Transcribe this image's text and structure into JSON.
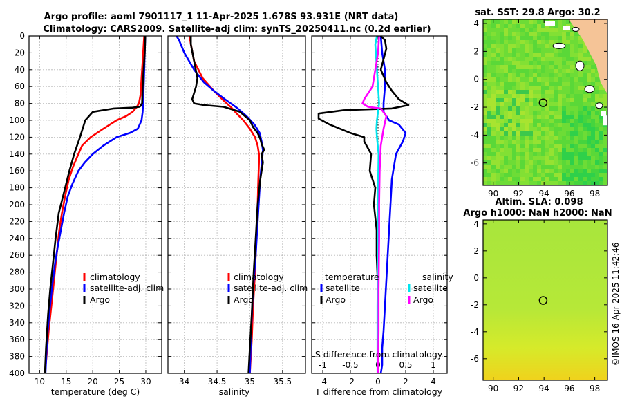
{
  "header": {
    "title1": "Argo profile: aoml 7901117_1 11-Apr-2025 1.678S 93.931E (NRT data)",
    "title2": "Climatology: CARS2009. Satellite-adj clim: synTS_20250411.nc (0.2d earlier)"
  },
  "colors": {
    "clim": "#ff0000",
    "sat": "#0000ff",
    "argo": "#000000",
    "sat_sal": "#00e5ee",
    "argo_sal": "#ff00ff",
    "land": "#f5c497"
  },
  "depth_axis": {
    "ticks": [
      "0",
      "20",
      "40",
      "60",
      "80",
      "100",
      "120",
      "140",
      "160",
      "180",
      "200",
      "220",
      "240",
      "260",
      "280",
      "300",
      "320",
      "340",
      "360",
      "380",
      "400"
    ],
    "ylim": [
      0,
      400
    ]
  },
  "chart_data": [
    {
      "type": "line",
      "name": "temperature",
      "xlabel": "temperature (deg C)",
      "xlim": [
        8,
        33
      ],
      "xticks": [
        "10",
        "15",
        "20",
        "25",
        "30"
      ],
      "xtick_values": [
        10,
        15,
        20,
        25,
        30
      ],
      "ylim": [
        0,
        400
      ],
      "legend": [
        "climatology",
        "satellite-adj. clim",
        "Argo"
      ],
      "series": [
        {
          "name": "climatology",
          "color": "#ff0000",
          "x": [
            29.7,
            29.6,
            29.4,
            29.2,
            29.0,
            28.7,
            28.2,
            27.5,
            26.3,
            24.5,
            22.0,
            19.6,
            18.0,
            17.3,
            16.3,
            15.5,
            14.8,
            14.2,
            13.7,
            13.2,
            12.7,
            12.2,
            11.7,
            11.3,
            11.0
          ],
          "y": [
            0,
            10,
            30,
            50,
            70,
            80,
            85,
            90,
            95,
            100,
            110,
            120,
            130,
            140,
            155,
            170,
            190,
            210,
            230,
            260,
            290,
            320,
            350,
            380,
            400
          ]
        },
        {
          "name": "satellite-adj. clim",
          "color": "#0000ff",
          "x": [
            29.9,
            29.8,
            29.7,
            29.6,
            29.5,
            29.4,
            29.2,
            28.5,
            27.0,
            24.5,
            22.0,
            20.0,
            18.5,
            17.3,
            16.2,
            15.3,
            14.6,
            14.0,
            13.4,
            12.9,
            12.3,
            11.8,
            11.4,
            11.1
          ],
          "y": [
            0,
            20,
            40,
            60,
            80,
            90,
            100,
            110,
            115,
            120,
            130,
            140,
            150,
            160,
            175,
            190,
            210,
            230,
            250,
            270,
            300,
            330,
            360,
            400
          ]
        },
        {
          "name": "Argo",
          "color": "#000000",
          "x": [
            29.9,
            29.8,
            29.6,
            29.4,
            29.3,
            29.0,
            28.8,
            27.5,
            24.0,
            20.0,
            18.6,
            17.6,
            16.5,
            15.6,
            15.0,
            14.4,
            13.6,
            13.0,
            12.5,
            12.0,
            11.6,
            11.2,
            11.0
          ],
          "y": [
            0,
            20,
            40,
            60,
            80,
            83,
            84,
            85,
            86,
            90,
            100,
            120,
            140,
            160,
            175,
            190,
            210,
            240,
            270,
            300,
            330,
            370,
            400
          ]
        }
      ]
    },
    {
      "type": "line",
      "name": "salinity",
      "xlabel": "salinity",
      "xlim": [
        33.75,
        35.85
      ],
      "xticks": [
        "34",
        "34.5",
        "35",
        "35.5"
      ],
      "xtick_values": [
        34,
        34.5,
        35,
        35.5
      ],
      "ylim": [
        0,
        400
      ],
      "legend": [
        "climatology",
        "satellite-adj. clim",
        "Argo"
      ],
      "series": [
        {
          "name": "climatology",
          "color": "#ff0000",
          "x": [
            34.08,
            34.1,
            34.15,
            34.28,
            34.45,
            34.62,
            34.72,
            34.8,
            34.9,
            35.0,
            35.08,
            35.12,
            35.14,
            35.14,
            35.13,
            35.12,
            35.1,
            35.08,
            35.05,
            35.03,
            35.0
          ],
          "y": [
            0,
            10,
            30,
            50,
            65,
            78,
            85,
            92,
            100,
            110,
            120,
            130,
            140,
            150,
            170,
            200,
            240,
            280,
            320,
            360,
            400
          ]
        },
        {
          "name": "satellite-adj. clim",
          "color": "#0000ff",
          "x": [
            33.88,
            33.92,
            34.0,
            34.15,
            34.3,
            34.45,
            34.62,
            34.8,
            34.95,
            35.07,
            35.15,
            35.18,
            35.2,
            35.19,
            35.17,
            35.15,
            35.12,
            35.09,
            35.05,
            35.02,
            35.0
          ],
          "y": [
            0,
            5,
            20,
            40,
            55,
            65,
            75,
            85,
            95,
            105,
            115,
            125,
            135,
            145,
            160,
            180,
            220,
            260,
            300,
            350,
            400
          ]
        },
        {
          "name": "Argo",
          "color": "#000000",
          "x": [
            34.1,
            34.1,
            34.15,
            34.2,
            34.18,
            34.12,
            34.15,
            34.3,
            34.6,
            34.85,
            35.0,
            35.05,
            35.12,
            35.16,
            35.18,
            35.22,
            35.18,
            35.2,
            35.16,
            35.12,
            35.09,
            35.06,
            35.03,
            35.0,
            34.98
          ],
          "y": [
            0,
            10,
            30,
            50,
            60,
            75,
            80,
            82,
            84,
            90,
            100,
            108,
            115,
            122,
            128,
            135,
            140,
            150,
            170,
            200,
            240,
            280,
            330,
            370,
            400
          ]
        }
      ]
    },
    {
      "type": "line",
      "name": "differences",
      "xlabel": "T difference from climatology",
      "x2label": "S difference from climatology",
      "xlim": [
        -4.8,
        5.0
      ],
      "xticks": [
        "-4",
        "-2",
        "0",
        "2",
        "4"
      ],
      "xtick_values": [
        -4,
        -2,
        0,
        2,
        4
      ],
      "x2lim": [
        -1.2,
        1.25
      ],
      "x2ticks": [
        "-1",
        "-0.5",
        "0",
        "0.5",
        "1"
      ],
      "x2tick_values": [
        -1,
        -0.5,
        0,
        0.5,
        1
      ],
      "ylim": [
        0,
        400
      ],
      "legend_temperature": [
        "temperature",
        "satellite",
        "Argo"
      ],
      "legend_salinity": [
        "salinity",
        "satellite",
        "Argo"
      ],
      "series": [
        {
          "name": "T satellite",
          "axis": "T",
          "color": "#0000ff",
          "x": [
            0.2,
            0.3,
            0.5,
            0.5,
            0.4,
            0.4,
            0.8,
            1.5,
            2.0,
            1.8,
            1.3,
            1.0,
            0.9,
            0.8,
            0.7,
            0.6,
            0.5,
            0.4,
            0.3,
            0.3,
            0.2
          ],
          "y": [
            0,
            20,
            40,
            60,
            80,
            90,
            100,
            105,
            115,
            125,
            140,
            170,
            200,
            230,
            260,
            290,
            320,
            350,
            370,
            390,
            400
          ]
        },
        {
          "name": "T Argo",
          "axis": "T",
          "color": "#000000",
          "x": [
            0.2,
            0.5,
            0.6,
            0.2,
            0.6,
            1.0,
            1.5,
            2.2,
            1.0,
            -2.5,
            -4.3,
            -4.3,
            -3.5,
            -2.0,
            -1.0,
            -1.0,
            -0.5,
            -0.6,
            -0.2,
            -0.3,
            -0.1,
            -0.1,
            0.0,
            0.0,
            0.0
          ],
          "y": [
            0,
            5,
            15,
            40,
            55,
            65,
            75,
            82,
            86,
            88,
            92,
            98,
            105,
            115,
            120,
            125,
            140,
            160,
            180,
            200,
            230,
            260,
            300,
            350,
            400
          ]
        },
        {
          "name": "S satellite",
          "axis": "S",
          "color": "#00e5ee",
          "x": [
            -0.02,
            -0.05,
            -0.03,
            -0.01,
            0.02,
            -0.02,
            -0.03,
            -0.02,
            0.01,
            0.0,
            0.0,
            -0.01,
            -0.01
          ],
          "y": [
            0,
            10,
            30,
            50,
            80,
            100,
            110,
            120,
            140,
            180,
            250,
            320,
            400
          ]
        },
        {
          "name": "S Argo",
          "axis": "S",
          "color": "#ff00ff",
          "x": [
            0.02,
            0.0,
            -0.05,
            -0.1,
            -0.25,
            -0.28,
            -0.18,
            0.05,
            0.15,
            0.1,
            0.05,
            0.03,
            0.02,
            0.02,
            0.01,
            0.01,
            0.0
          ],
          "y": [
            0,
            20,
            40,
            60,
            75,
            80,
            84,
            86,
            95,
            110,
            130,
            160,
            200,
            240,
            300,
            350,
            400
          ]
        }
      ]
    },
    {
      "type": "heatmap",
      "name": "sat-sst-map",
      "title": "sat. SST: 29.8 Argo: 30.2",
      "xlim": [
        89.2,
        99.0
      ],
      "ylim": [
        -7.6,
        4.3
      ],
      "xticks": [
        "90",
        "92",
        "94",
        "96",
        "98"
      ],
      "xtick_values": [
        90,
        92,
        94,
        96,
        98
      ],
      "yticks": [
        "4",
        "2",
        "0",
        "-2",
        "-4",
        "-6"
      ],
      "ytick_values": [
        4,
        2,
        0,
        -2,
        -4,
        -6
      ],
      "float_position": {
        "lon": 93.931,
        "lat": -1.678
      }
    },
    {
      "type": "heatmap",
      "name": "sla-map",
      "title1": "Altim. SLA: 0.098",
      "title2": "Argo h1000: NaN h2000: NaN",
      "xlim": [
        89.2,
        99.0
      ],
      "ylim": [
        -7.6,
        4.3
      ],
      "xticks": [
        "90",
        "92",
        "94",
        "96",
        "98"
      ],
      "xtick_values": [
        90,
        92,
        94,
        96,
        98
      ],
      "yticks": [
        "4",
        "2",
        "0",
        "-2",
        "-4",
        "-6"
      ],
      "ytick_values": [
        4,
        2,
        0,
        -2,
        -4,
        -6
      ],
      "float_position": {
        "lon": 93.931,
        "lat": -1.678
      }
    }
  ],
  "footer": {
    "stamp": "©IMOS 16-Apr-2025 11:42:46"
  }
}
